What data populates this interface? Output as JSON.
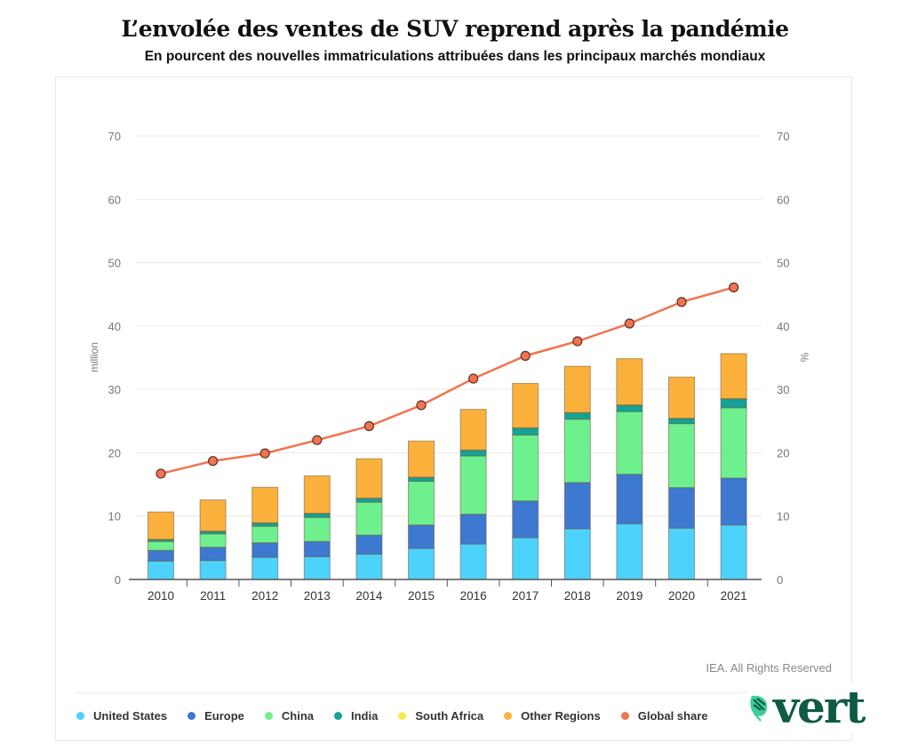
{
  "header": {
    "title": "L’envolée des ventes de SUV reprend après la pandémie",
    "subtitle": "En pourcent des nouvelles immatriculations attribuées dans les principaux marchés mondiaux"
  },
  "credit": "IEA. All Rights Reserved",
  "logo": {
    "text": "vert",
    "icon": "leaf-icon"
  },
  "colors": {
    "United States": "#4dd2fb",
    "Europe": "#3d78d1",
    "China": "#6ef08e",
    "India": "#11a398",
    "South Africa": "#f8e94a",
    "Other Regions": "#fbb13c",
    "Global share": "#f2734f"
  },
  "chart_data": {
    "type": "bar",
    "stacked": true,
    "title": "L’envolée des ventes de SUV reprend après la pandémie",
    "subtitle": "En pourcent des nouvelles immatriculations attribuées dans les principaux marchés mondiaux",
    "xlabel": "",
    "ylabel": "million",
    "y2label": "%",
    "ylim": [
      0,
      70
    ],
    "y2lim": [
      0,
      70
    ],
    "yticks": [
      0,
      10,
      20,
      30,
      40,
      50,
      60,
      70
    ],
    "grid": true,
    "legend_position": "bottom",
    "categories": [
      "2010",
      "2011",
      "2012",
      "2013",
      "2014",
      "2015",
      "2016",
      "2017",
      "2018",
      "2019",
      "2020",
      "2021"
    ],
    "series": [
      {
        "name": "United States",
        "type": "bar",
        "axis": "left",
        "values": [
          2.9,
          3.0,
          3.5,
          3.6,
          4.0,
          4.9,
          5.6,
          6.6,
          8.0,
          8.8,
          8.1,
          8.6
        ]
      },
      {
        "name": "Europe",
        "type": "bar",
        "axis": "left",
        "values": [
          1.7,
          2.1,
          2.3,
          2.4,
          3.0,
          3.7,
          4.7,
          5.8,
          7.3,
          7.8,
          6.4,
          7.4
        ]
      },
      {
        "name": "China",
        "type": "bar",
        "axis": "left",
        "values": [
          1.4,
          2.1,
          2.6,
          3.8,
          5.2,
          6.9,
          9.2,
          10.4,
          10.0,
          9.9,
          10.1,
          11.1
        ]
      },
      {
        "name": "India",
        "type": "bar",
        "axis": "left",
        "values": [
          0.3,
          0.4,
          0.5,
          0.6,
          0.6,
          0.6,
          0.9,
          1.1,
          1.0,
          1.0,
          0.8,
          1.4
        ]
      },
      {
        "name": "South Africa",
        "type": "bar",
        "axis": "left",
        "values": [
          0.05,
          0.05,
          0.05,
          0.05,
          0.05,
          0.05,
          0.05,
          0.05,
          0.05,
          0.05,
          0.05,
          0.05
        ]
      },
      {
        "name": "Other Regions",
        "type": "bar",
        "axis": "left",
        "values": [
          4.3,
          4.9,
          5.6,
          5.9,
          6.2,
          5.7,
          6.4,
          7.0,
          7.3,
          7.3,
          6.5,
          7.1
        ]
      },
      {
        "name": "Global share",
        "type": "line",
        "axis": "right",
        "values": [
          16.7,
          18.7,
          19.9,
          22.0,
          24.2,
          27.5,
          31.7,
          35.3,
          37.6,
          40.4,
          43.8,
          46.1
        ]
      }
    ]
  }
}
